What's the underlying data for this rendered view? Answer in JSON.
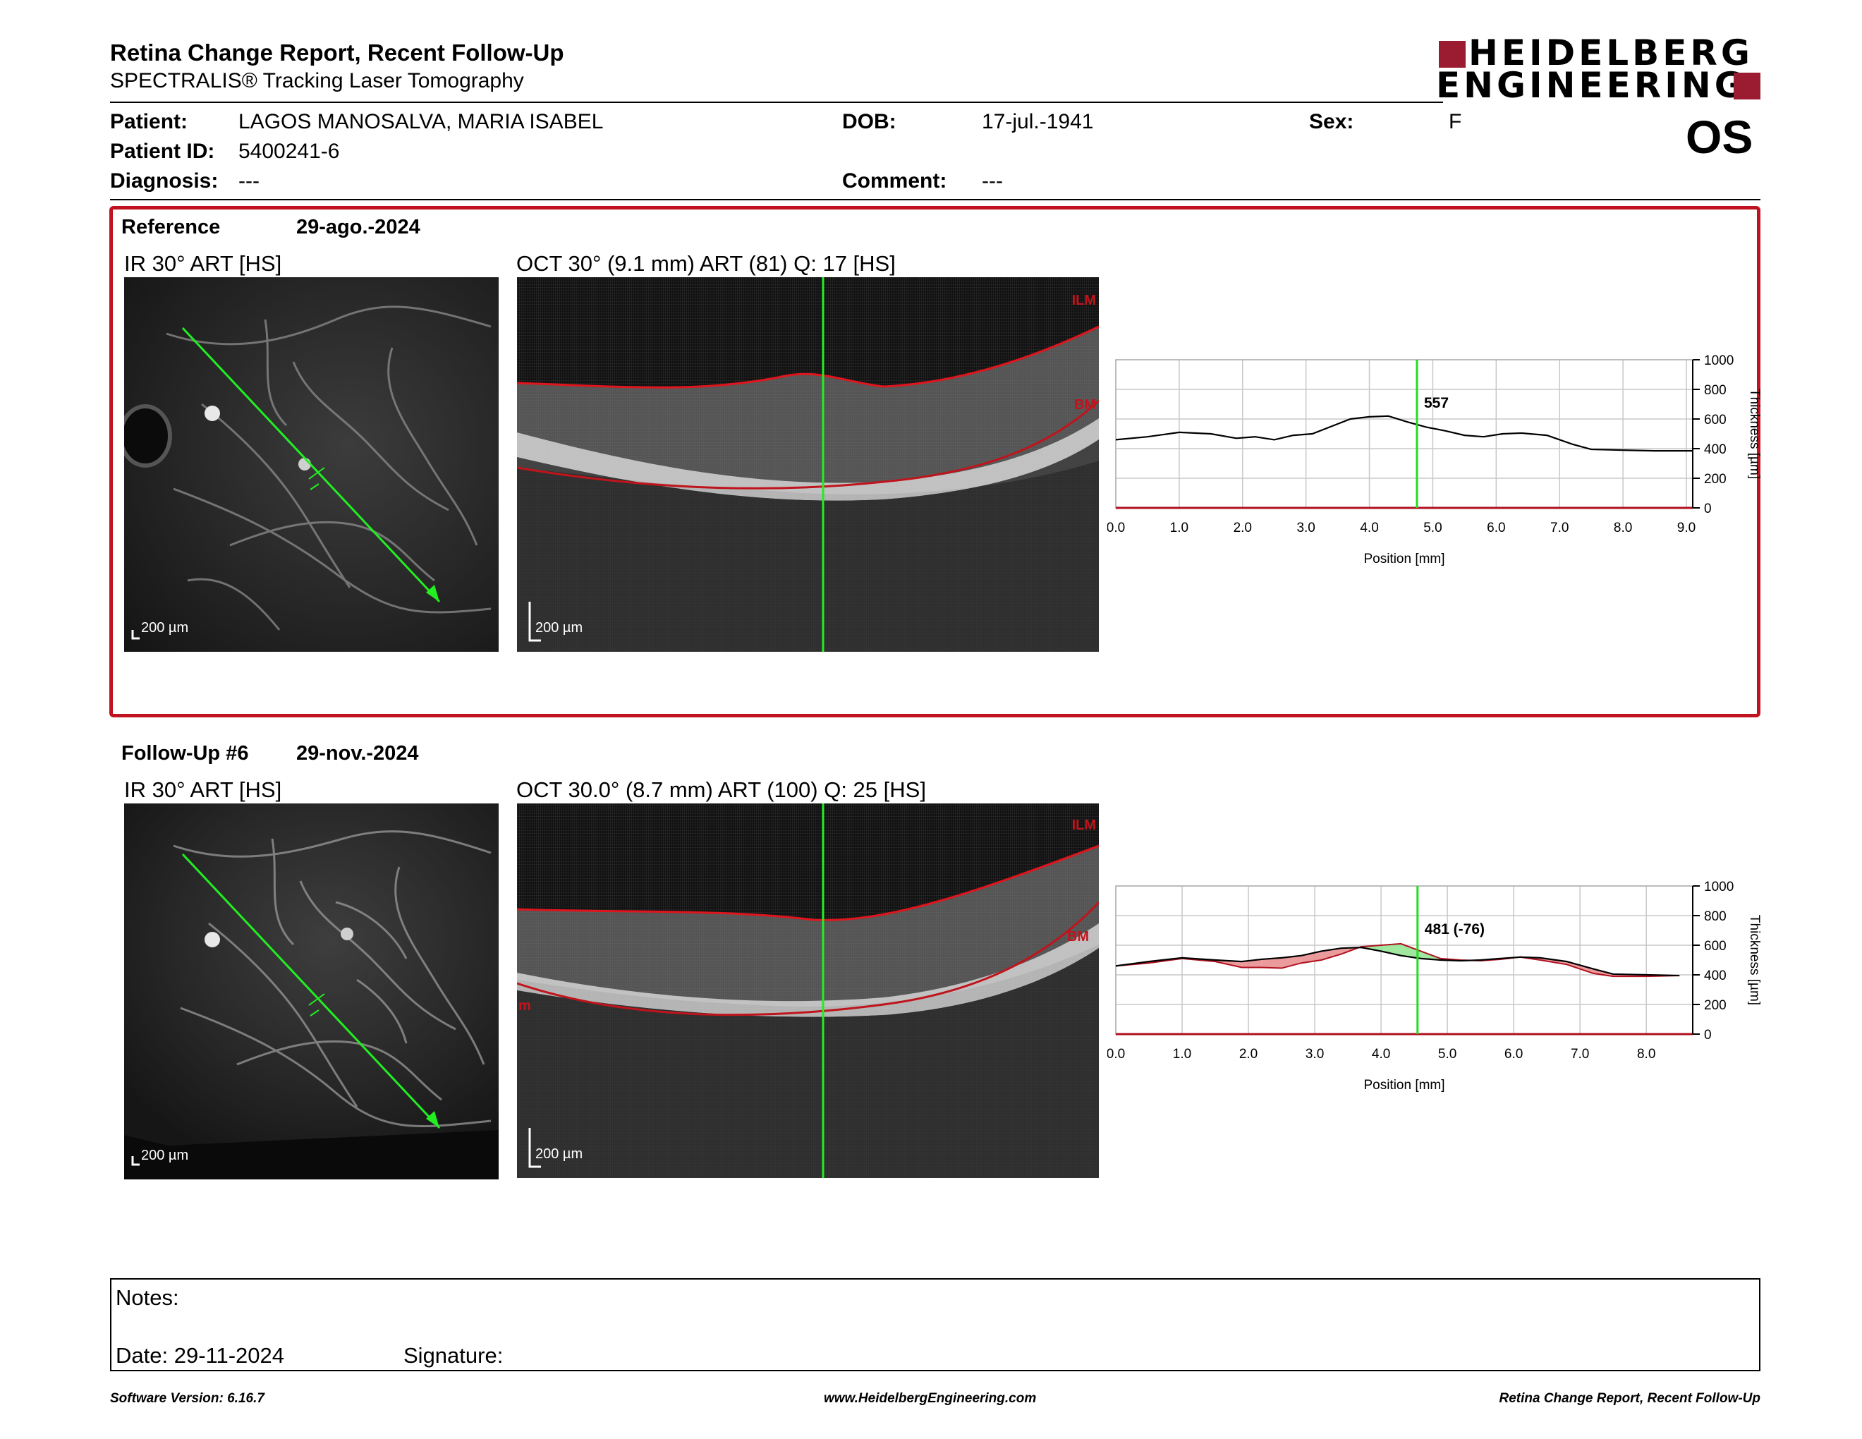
{
  "header": {
    "title": "Retina Change Report, Recent Follow-Up",
    "subtitle": "SPECTRALIS® Tracking Laser Tomography",
    "logo_line1": "HEIDELBERG",
    "logo_line2": "ENGINEERING",
    "brand_color": "#9b1b30"
  },
  "patient": {
    "patient_label": "Patient:",
    "patient_value": "LAGOS MANOSALVA, MARIA ISABEL",
    "dob_label": "DOB:",
    "dob_value": "17-jul.-1941",
    "sex_label": "Sex:",
    "sex_value": "F",
    "id_label": "Patient ID:",
    "id_value": "5400241-6",
    "diagnosis_label": "Diagnosis:",
    "diagnosis_value": "---",
    "comment_label": "Comment:",
    "comment_value": "---",
    "eye": "OS"
  },
  "reference": {
    "label": "Reference",
    "date": "29-ago.-2024",
    "ir_label": "IR 30° ART [HS]",
    "oct_label": "OCT 30° (9.1 mm) ART (81) Q: 17 [HS]",
    "scale": "200 µm",
    "ilm": "ILM",
    "bm": "BM"
  },
  "followup": {
    "label": "Follow-Up #6",
    "date": "29-nov.-2024",
    "ir_label": "IR 30° ART [HS]",
    "oct_label": "OCT 30.0° (8.7 mm) ART (100) Q: 25 [HS]",
    "scale": "200 µm",
    "ilm": "ILM",
    "bm": "BM",
    "bm_left": "m"
  },
  "chart_data": [
    {
      "type": "line",
      "xlabel": "Position [mm]",
      "ylabel": "Thickness [µm]",
      "xlim": [
        0,
        9.1
      ],
      "ylim": [
        0,
        1000
      ],
      "x_ticks": [
        "0.0",
        "1.0",
        "2.0",
        "3.0",
        "4.0",
        "5.0",
        "6.0",
        "7.0",
        "8.0",
        "9.0"
      ],
      "y_ticks": [
        "0",
        "200",
        "400",
        "600",
        "800",
        "1000"
      ],
      "cursor_x": 4.75,
      "cursor_label": "557",
      "grid": true,
      "series": [
        {
          "x": [
            0,
            0.5,
            1.0,
            1.5,
            1.9,
            2.2,
            2.5,
            2.8,
            3.1,
            3.4,
            3.7,
            4.0,
            4.3,
            4.6,
            4.9,
            5.2,
            5.5,
            5.8,
            6.1,
            6.4,
            6.8,
            7.2,
            7.5,
            8.0,
            8.5,
            9.1
          ],
          "values": [
            460,
            480,
            510,
            500,
            470,
            480,
            460,
            490,
            500,
            550,
            600,
            615,
            620,
            580,
            545,
            520,
            490,
            480,
            500,
            505,
            490,
            430,
            395,
            390,
            385,
            385
          ]
        }
      ]
    },
    {
      "type": "line",
      "xlabel": "Position [mm]",
      "ylabel": "Thickness [µm]",
      "xlim": [
        0,
        8.7
      ],
      "ylim": [
        0,
        1000
      ],
      "x_ticks": [
        "0.0",
        "1.0",
        "2.0",
        "3.0",
        "4.0",
        "5.0",
        "6.0",
        "7.0",
        "8.0"
      ],
      "y_ticks": [
        "0",
        "200",
        "400",
        "600",
        "800",
        "1000"
      ],
      "cursor_x": 4.55,
      "cursor_label": "481 (-76)",
      "grid": true,
      "series": [
        {
          "x": [
            0,
            0.5,
            1.0,
            1.5,
            1.9,
            2.2,
            2.5,
            2.8,
            3.1,
            3.4,
            3.7,
            4.0,
            4.3,
            4.6,
            4.9,
            5.2,
            5.5,
            5.8,
            6.1,
            6.4,
            6.8,
            7.2,
            7.5,
            8.0,
            8.5
          ],
          "values": [
            460,
            490,
            515,
            500,
            490,
            505,
            515,
            530,
            560,
            580,
            585,
            560,
            530,
            510,
            500,
            495,
            500,
            510,
            520,
            515,
            490,
            440,
            405,
            400,
            395
          ]
        },
        {
          "x": [
            0,
            0.5,
            1.0,
            1.5,
            1.9,
            2.2,
            2.5,
            2.8,
            3.1,
            3.4,
            3.7,
            4.0,
            4.3,
            4.6,
            4.9,
            5.2,
            5.5,
            5.8,
            6.1,
            6.4,
            6.8,
            7.2,
            7.5,
            8.0,
            8.5
          ],
          "values": [
            460,
            480,
            510,
            490,
            450,
            450,
            445,
            480,
            500,
            540,
            590,
            600,
            610,
            560,
            510,
            500,
            495,
            505,
            520,
            500,
            470,
            410,
            390,
            390,
            395
          ]
        }
      ]
    }
  ],
  "notes": {
    "notes_label": "Notes:",
    "date_label": "Date: 29-11-2024",
    "signature_label": "Signature:"
  },
  "footer": {
    "version": "Software Version: 6.16.7",
    "website": "www.HeidelbergEngineering.com",
    "report": "Retina Change Report, Recent Follow-Up"
  }
}
